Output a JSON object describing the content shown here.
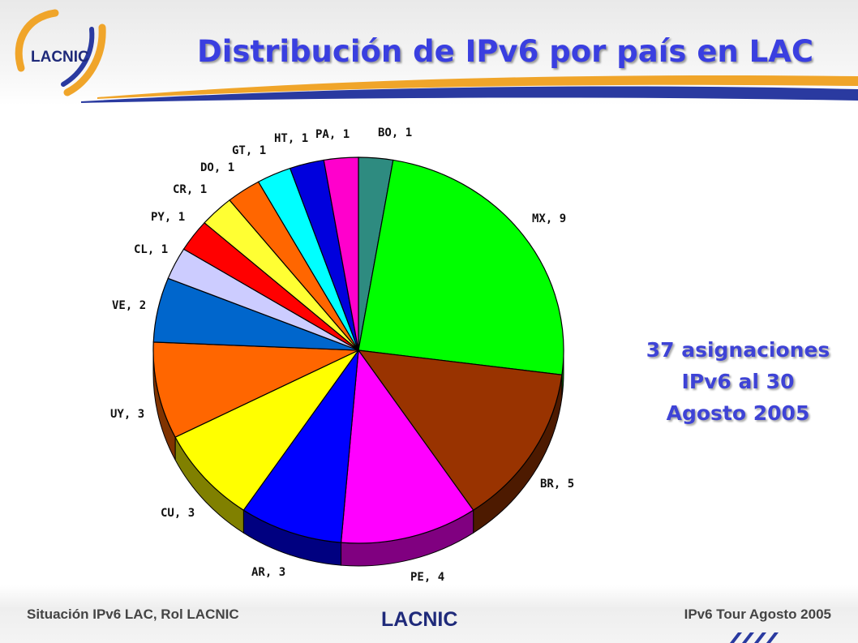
{
  "header": {
    "title": "Distribución de IPv6 por país en LAC",
    "logo_text": "LACNIC"
  },
  "note": {
    "lines": [
      "37 asignaciones",
      "IPv6 al 30",
      "Agosto 2005"
    ]
  },
  "footer": {
    "left": "Situación IPv6 LAC, Rol LACNIC",
    "right": "IPv6 Tour Agosto 2005",
    "logo_text": "LACNIC"
  },
  "colors": {
    "title": "#3a3fe0",
    "brand_orange": "#f0a52a",
    "brand_blue": "#2a3aa0"
  },
  "chart_data": {
    "type": "pie",
    "total": 37,
    "slices": [
      {
        "label": "BO, 1",
        "category": "BO",
        "value": 1,
        "color": "#2e8b80"
      },
      {
        "label": "MX, 9",
        "category": "MX",
        "value": 9,
        "color": "#00ff00"
      },
      {
        "label": "BR, 5",
        "category": "BR",
        "value": 5,
        "color": "#993300"
      },
      {
        "label": "PE, 4",
        "category": "PE",
        "value": 4,
        "color": "#ff00ff"
      },
      {
        "label": "AR, 3",
        "category": "AR",
        "value": 3,
        "color": "#0000ff"
      },
      {
        "label": "CU, 3",
        "category": "CU",
        "value": 3,
        "color": "#ffff00"
      },
      {
        "label": "UY, 3",
        "category": "UY",
        "value": 3,
        "color": "#ff6600"
      },
      {
        "label": "VE, 2",
        "category": "VE",
        "value": 2,
        "color": "#0066cc"
      },
      {
        "label": "CL, 1",
        "category": "CL",
        "value": 1,
        "color": "#ccccff"
      },
      {
        "label": "PY, 1",
        "category": "PY",
        "value": 1,
        "color": "#ff0000"
      },
      {
        "label": "CR, 1",
        "category": "CR",
        "value": 1,
        "color": "#ffff33"
      },
      {
        "label": "DO, 1",
        "category": "DO",
        "value": 1,
        "color": "#ff6600"
      },
      {
        "label": "GT, 1",
        "category": "GT",
        "value": 1,
        "color": "#00ffff"
      },
      {
        "label": "HT, 1",
        "category": "HT",
        "value": 1,
        "color": "#0000dd"
      },
      {
        "label": "PA, 1",
        "category": "PA",
        "value": 1,
        "color": "#ff00cc"
      }
    ]
  }
}
